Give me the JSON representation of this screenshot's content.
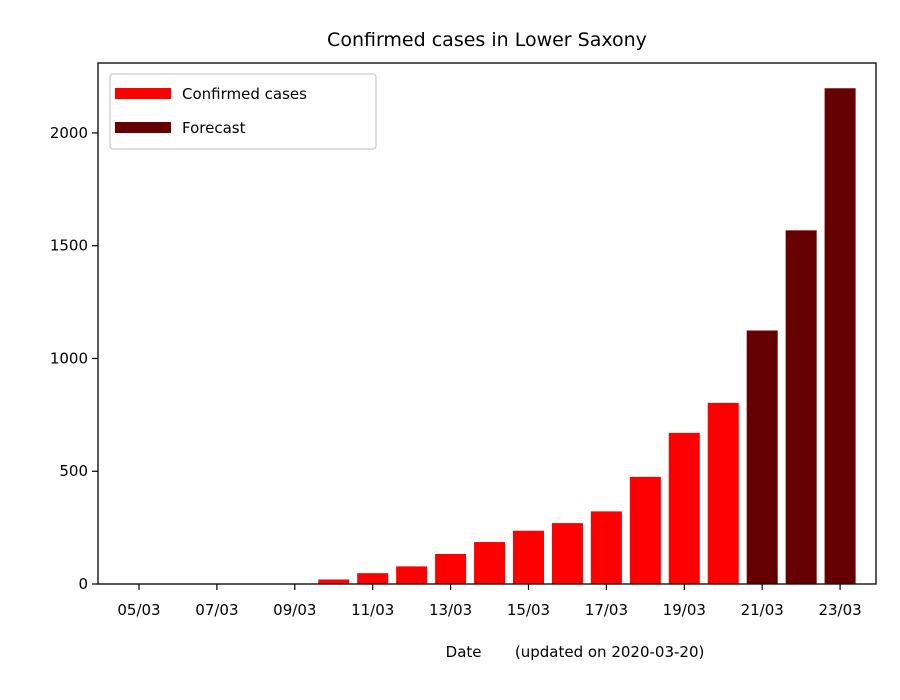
{
  "chart_data": {
    "type": "bar",
    "title": "Confirmed cases in Lower Saxony",
    "xlabel": "Date       (updated on 2020-03-20)",
    "ylabel": "",
    "x_tick_labels": [
      "05/03",
      "07/03",
      "09/03",
      "11/03",
      "13/03",
      "15/03",
      "17/03",
      "19/03",
      "21/03",
      "23/03"
    ],
    "y_ticks": [
      0,
      500,
      1000,
      1500,
      2000
    ],
    "ylim": [
      0,
      2310
    ],
    "grid": false,
    "legend_position": "top-left",
    "series": [
      {
        "name": "Confirmed cases",
        "color": "#ff0000",
        "categories": [
          "05/03",
          "06/03",
          "07/03",
          "08/03",
          "09/03",
          "10/03",
          "11/03",
          "12/03",
          "13/03",
          "14/03",
          "15/03",
          "16/03",
          "17/03",
          "18/03",
          "19/03",
          "20/03"
        ],
        "values": [
          0,
          0,
          0,
          0,
          0,
          20,
          48,
          78,
          133,
          186,
          236,
          270,
          322,
          475,
          670,
          803
        ]
      },
      {
        "name": "Forecast",
        "color": "#660000",
        "categories": [
          "21/03",
          "22/03",
          "23/03"
        ],
        "values": [
          1124,
          1568,
          2198
        ]
      }
    ]
  }
}
